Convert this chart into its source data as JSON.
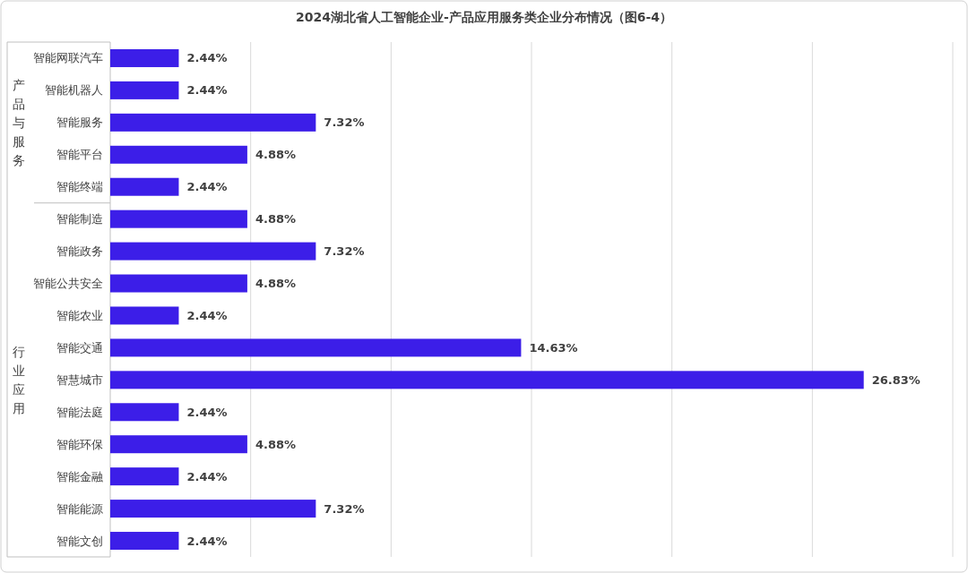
{
  "chart_data": {
    "type": "bar",
    "orientation": "horizontal",
    "title": "2024湖北省人工智能企业-产品应用服务类企业分布情况（图6-4）",
    "categories": [
      "智能网联汽车",
      "智能机器人",
      "智能服务",
      "智能平台",
      "智能终端",
      "智能制造",
      "智能政务",
      "智能公共安全",
      "智能农业",
      "智能交通",
      "智慧城市",
      "智能法庭",
      "智能环保",
      "智能金融",
      "智能能源",
      "智能文创"
    ],
    "values": [
      2.44,
      2.44,
      7.32,
      4.88,
      2.44,
      4.88,
      7.32,
      4.88,
      2.44,
      14.63,
      26.83,
      2.44,
      4.88,
      2.44,
      7.32,
      2.44
    ],
    "value_labels": [
      "2.44%",
      "2.44%",
      "7.32%",
      "4.88%",
      "2.44%",
      "4.88%",
      "7.32%",
      "4.88%",
      "2.44%",
      "14.63%",
      "26.83%",
      "2.44%",
      "4.88%",
      "2.44%",
      "7.32%",
      "2.44%"
    ],
    "color": "#3c1ee8",
    "xlim": [
      0,
      30
    ],
    "xticks": [
      {
        "value": 0,
        "label": null
      },
      {
        "value": 5,
        "label": null
      },
      {
        "value": 10,
        "label": null
      },
      {
        "value": 15,
        "label": null
      },
      {
        "value": 20,
        "label": null
      },
      {
        "value": 25,
        "label": null
      },
      {
        "value": 30,
        "label": null
      }
    ],
    "grid": "x",
    "annotations": [
      "产品与服务",
      "行业应用"
    ]
  }
}
